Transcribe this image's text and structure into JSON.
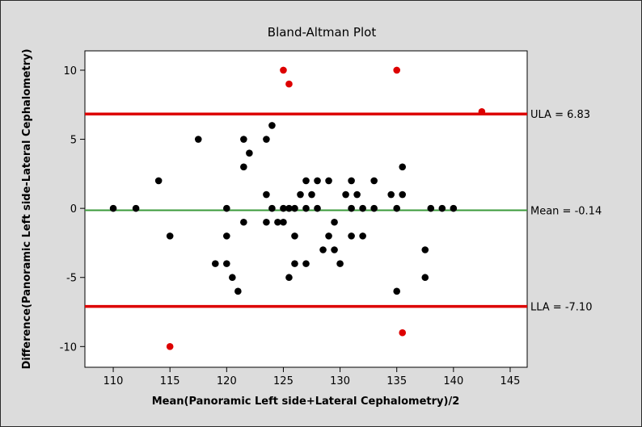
{
  "chart_data": {
    "type": "scatter",
    "title": "Bland-Altman Plot",
    "xlabel": "Mean(Panoramic Left side+Lateral Cephalometry)/2",
    "ylabel": "Difference(Panoramic Left side-Lateral Cephalometry)",
    "xlim": [
      107.5,
      146.5
    ],
    "ylim": [
      -11.5,
      11.4
    ],
    "xticks": [
      110,
      115,
      120,
      125,
      130,
      135,
      140,
      145
    ],
    "yticks": [
      10,
      5,
      0,
      -5,
      -10
    ],
    "grid": false,
    "reference_lines": [
      {
        "label": "ULA = 6.83",
        "value": 6.83,
        "color": "#dd0000"
      },
      {
        "label": "Mean = -0.14",
        "value": -0.14,
        "color": "#3a9a3a"
      },
      {
        "label": "LLA = -7.10",
        "value": -7.1,
        "color": "#dd0000"
      }
    ],
    "point_colors": {
      "inside": "#000000",
      "outside": "#dd0000"
    },
    "points": [
      {
        "x": 110,
        "y": 0
      },
      {
        "x": 112,
        "y": 0
      },
      {
        "x": 114,
        "y": 2
      },
      {
        "x": 115,
        "y": -2
      },
      {
        "x": 117.5,
        "y": 5
      },
      {
        "x": 119,
        "y": -4
      },
      {
        "x": 120,
        "y": -4
      },
      {
        "x": 120,
        "y": 0
      },
      {
        "x": 120,
        "y": -2
      },
      {
        "x": 120.5,
        "y": -5
      },
      {
        "x": 121,
        "y": -6
      },
      {
        "x": 121.5,
        "y": 5
      },
      {
        "x": 121.5,
        "y": 3
      },
      {
        "x": 121.5,
        "y": -1
      },
      {
        "x": 122,
        "y": 4
      },
      {
        "x": 123.5,
        "y": 5
      },
      {
        "x": 123.5,
        "y": 1
      },
      {
        "x": 123.5,
        "y": -1
      },
      {
        "x": 124,
        "y": 6
      },
      {
        "x": 124,
        "y": 0
      },
      {
        "x": 124.5,
        "y": -1
      },
      {
        "x": 125,
        "y": 0
      },
      {
        "x": 125,
        "y": -1
      },
      {
        "x": 125.5,
        "y": -5
      },
      {
        "x": 125.5,
        "y": 0
      },
      {
        "x": 126,
        "y": -2
      },
      {
        "x": 126,
        "y": -4
      },
      {
        "x": 126,
        "y": 0
      },
      {
        "x": 126.5,
        "y": 1
      },
      {
        "x": 127,
        "y": 2
      },
      {
        "x": 127,
        "y": 0
      },
      {
        "x": 127,
        "y": -4
      },
      {
        "x": 127.5,
        "y": 1
      },
      {
        "x": 128,
        "y": 2
      },
      {
        "x": 128,
        "y": 0
      },
      {
        "x": 128.5,
        "y": -3
      },
      {
        "x": 129,
        "y": 2
      },
      {
        "x": 129,
        "y": -2
      },
      {
        "x": 129.5,
        "y": -1
      },
      {
        "x": 129.5,
        "y": -3
      },
      {
        "x": 130,
        "y": -4
      },
      {
        "x": 130.5,
        "y": 1
      },
      {
        "x": 131,
        "y": 2
      },
      {
        "x": 131,
        "y": 0
      },
      {
        "x": 131,
        "y": -2
      },
      {
        "x": 131.5,
        "y": 1
      },
      {
        "x": 132,
        "y": 0
      },
      {
        "x": 132,
        "y": -2
      },
      {
        "x": 133,
        "y": 0
      },
      {
        "x": 133,
        "y": 2
      },
      {
        "x": 134.5,
        "y": 1
      },
      {
        "x": 135,
        "y": 0
      },
      {
        "x": 135,
        "y": -6
      },
      {
        "x": 135.5,
        "y": 3
      },
      {
        "x": 135.5,
        "y": 1
      },
      {
        "x": 137.5,
        "y": -3
      },
      {
        "x": 137.5,
        "y": -5
      },
      {
        "x": 138,
        "y": 0
      },
      {
        "x": 139,
        "y": 0
      },
      {
        "x": 140,
        "y": 0
      },
      {
        "x": 125,
        "y": 10,
        "outside": true
      },
      {
        "x": 125.5,
        "y": 9,
        "outside": true
      },
      {
        "x": 135,
        "y": 10,
        "outside": true
      },
      {
        "x": 142.5,
        "y": 7,
        "outside": true
      },
      {
        "x": 115,
        "y": -10,
        "outside": true
      },
      {
        "x": 135.5,
        "y": -9,
        "outside": true
      }
    ]
  }
}
